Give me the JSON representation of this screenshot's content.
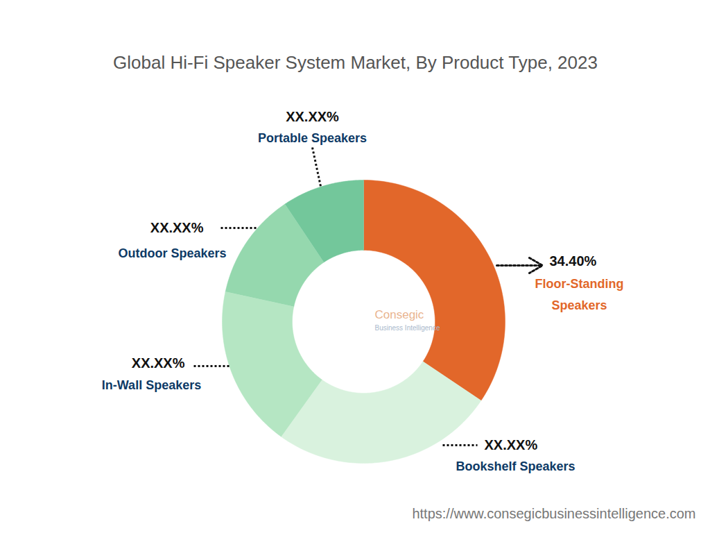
{
  "chart_data": {
    "type": "donut",
    "title": "Global Hi-Fi Speaker System Market, By Product Type, 2023",
    "categories": [
      "Floor-Standing Speakers",
      "Bookshelf Speakers",
      "In-Wall Speakers",
      "Outdoor Speakers",
      "Portable Speakers"
    ],
    "values": [
      34.4,
      25.5,
      18.5,
      12.2,
      9.4
    ],
    "value_labels": [
      "34.40%",
      "XX.XX%",
      "XX.XX%",
      "XX.XX%",
      "XX.XX%"
    ],
    "colors": [
      "#e2672a",
      "#d9f2de",
      "#b5e6c3",
      "#95d8ae",
      "#73c79b"
    ],
    "data_labels": true,
    "legend": false,
    "watermark": [
      "Consegic",
      "Business Intelligence"
    ],
    "source": "https://www.consegicbusinessintelligence.com"
  }
}
